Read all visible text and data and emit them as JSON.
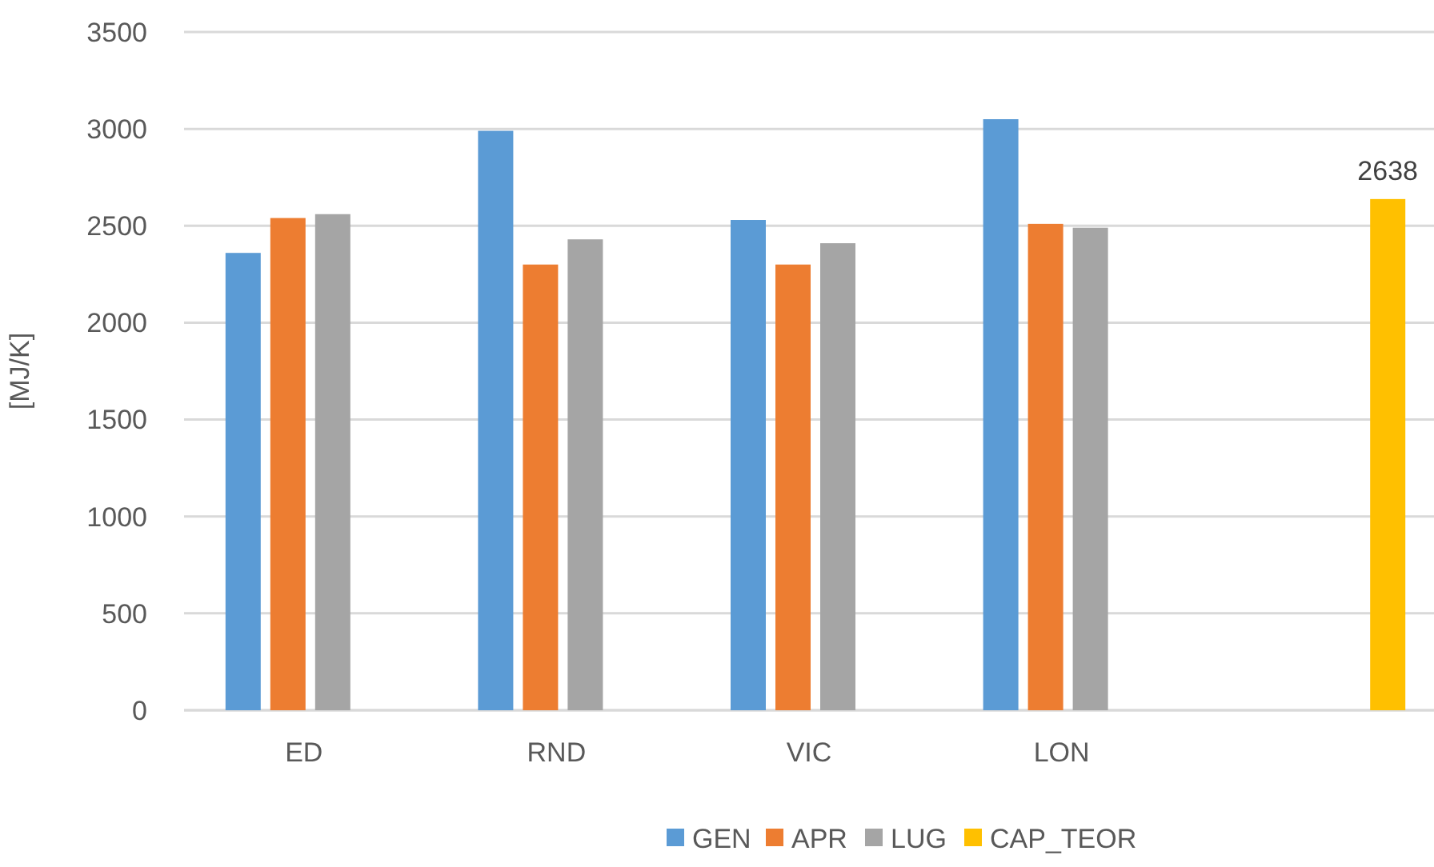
{
  "chart_data": {
    "type": "bar",
    "ylabel": "[MJ/K]",
    "categories": [
      "ED",
      "RND",
      "VIC",
      "LON",
      null
    ],
    "series": [
      {
        "name": "GEN",
        "color": "#5b9bd5",
        "values": [
          2360,
          2990,
          2530,
          3050,
          null
        ]
      },
      {
        "name": "APR",
        "color": "#ed7d31",
        "values": [
          2540,
          2300,
          2300,
          2510,
          null
        ]
      },
      {
        "name": "LUG",
        "color": "#a5a5a5",
        "values": [
          2560,
          2430,
          2410,
          2490,
          null
        ]
      },
      {
        "name": "CAP_TEOR",
        "color": "#ffc000",
        "values": [
          null,
          null,
          null,
          null,
          2638
        ],
        "value_labels": [
          null,
          null,
          null,
          null,
          "2638"
        ]
      }
    ],
    "ylim": [
      0,
      3500
    ],
    "yticks": [
      0,
      500,
      1000,
      1500,
      2000,
      2500,
      3000,
      3500
    ],
    "grid": "y",
    "legend": "bottom"
  }
}
